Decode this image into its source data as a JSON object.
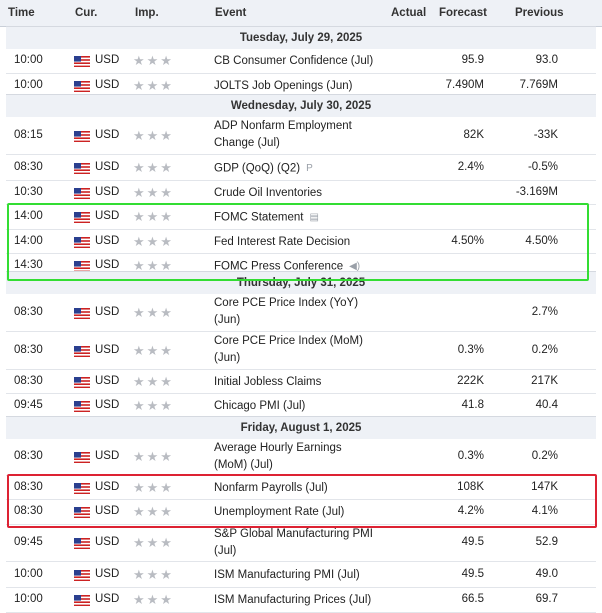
{
  "headers": {
    "time": "Time",
    "cur": "Cur.",
    "imp": "Imp.",
    "event": "Event",
    "actual": "Actual",
    "forecast": "Forecast",
    "previous": "Previous"
  },
  "stars": "★★★",
  "days": [
    {
      "label": "Tuesday, July 29, 2025",
      "rows": [
        {
          "time": "10:00",
          "cur": "USD",
          "event": "CB Consumer Confidence (Jul)",
          "forecast": "95.9",
          "previous": "93.0"
        },
        {
          "time": "10:00",
          "cur": "USD",
          "event": "JOLTS Job Openings (Jun)",
          "forecast": "7.490M",
          "previous": "7.769M"
        }
      ]
    },
    {
      "label": "Wednesday, July 30, 2025",
      "rows": [
        {
          "time": "08:15",
          "cur": "USD",
          "event": "ADP Nonfarm Employment Change (Jul)",
          "forecast": "82K",
          "previous": "-33K"
        },
        {
          "time": "08:30",
          "cur": "USD",
          "event": "GDP (QoQ) (Q2)",
          "icon": "P",
          "forecast": "2.4%",
          "previous": "-0.5%"
        },
        {
          "time": "10:30",
          "cur": "USD",
          "event": "Crude Oil Inventories",
          "forecast": "",
          "previous": "-3.169M"
        },
        {
          "time": "14:00",
          "cur": "USD",
          "event": "FOMC Statement",
          "icon": "▤",
          "forecast": "",
          "previous": ""
        },
        {
          "time": "14:00",
          "cur": "USD",
          "event": "Fed Interest Rate Decision",
          "forecast": "4.50%",
          "previous": "4.50%"
        },
        {
          "time": "14:30",
          "cur": "USD",
          "event": "FOMC Press Conference",
          "icon": "◀)",
          "forecast": "",
          "previous": ""
        }
      ]
    },
    {
      "label": "Thursday, July 31, 2025",
      "rows": [
        {
          "time": "08:30",
          "cur": "USD",
          "event": "Core PCE Price Index (YoY) (Jun)",
          "forecast": "",
          "previous": "2.7%"
        },
        {
          "time": "08:30",
          "cur": "USD",
          "event": "Core PCE Price Index (MoM) (Jun)",
          "forecast": "0.3%",
          "previous": "0.2%"
        },
        {
          "time": "08:30",
          "cur": "USD",
          "event": "Initial Jobless Claims",
          "forecast": "222K",
          "previous": "217K"
        },
        {
          "time": "09:45",
          "cur": "USD",
          "event": "Chicago PMI (Jul)",
          "forecast": "41.8",
          "previous": "40.4"
        }
      ]
    },
    {
      "label": "Friday, August 1, 2025",
      "rows": [
        {
          "time": "08:30",
          "cur": "USD",
          "event": "Average Hourly Earnings (MoM) (Jul)",
          "forecast": "0.3%",
          "previous": "0.2%"
        },
        {
          "time": "08:30",
          "cur": "USD",
          "event": "Nonfarm Payrolls (Jul)",
          "forecast": "108K",
          "previous": "147K"
        },
        {
          "time": "08:30",
          "cur": "USD",
          "event": "Unemployment Rate (Jul)",
          "forecast": "4.2%",
          "previous": "4.1%"
        },
        {
          "time": "09:45",
          "cur": "USD",
          "event": "S&P Global Manufacturing PMI (Jul)",
          "forecast": "49.5",
          "previous": "52.9"
        },
        {
          "time": "10:00",
          "cur": "USD",
          "event": "ISM Manufacturing PMI (Jul)",
          "forecast": "49.5",
          "previous": "49.0"
        },
        {
          "time": "10:00",
          "cur": "USD",
          "event": "ISM Manufacturing Prices (Jul)",
          "forecast": "66.5",
          "previous": "69.7"
        }
      ]
    }
  ],
  "colors": {
    "green_box": "#33dd33",
    "red_box": "#dd2233"
  }
}
